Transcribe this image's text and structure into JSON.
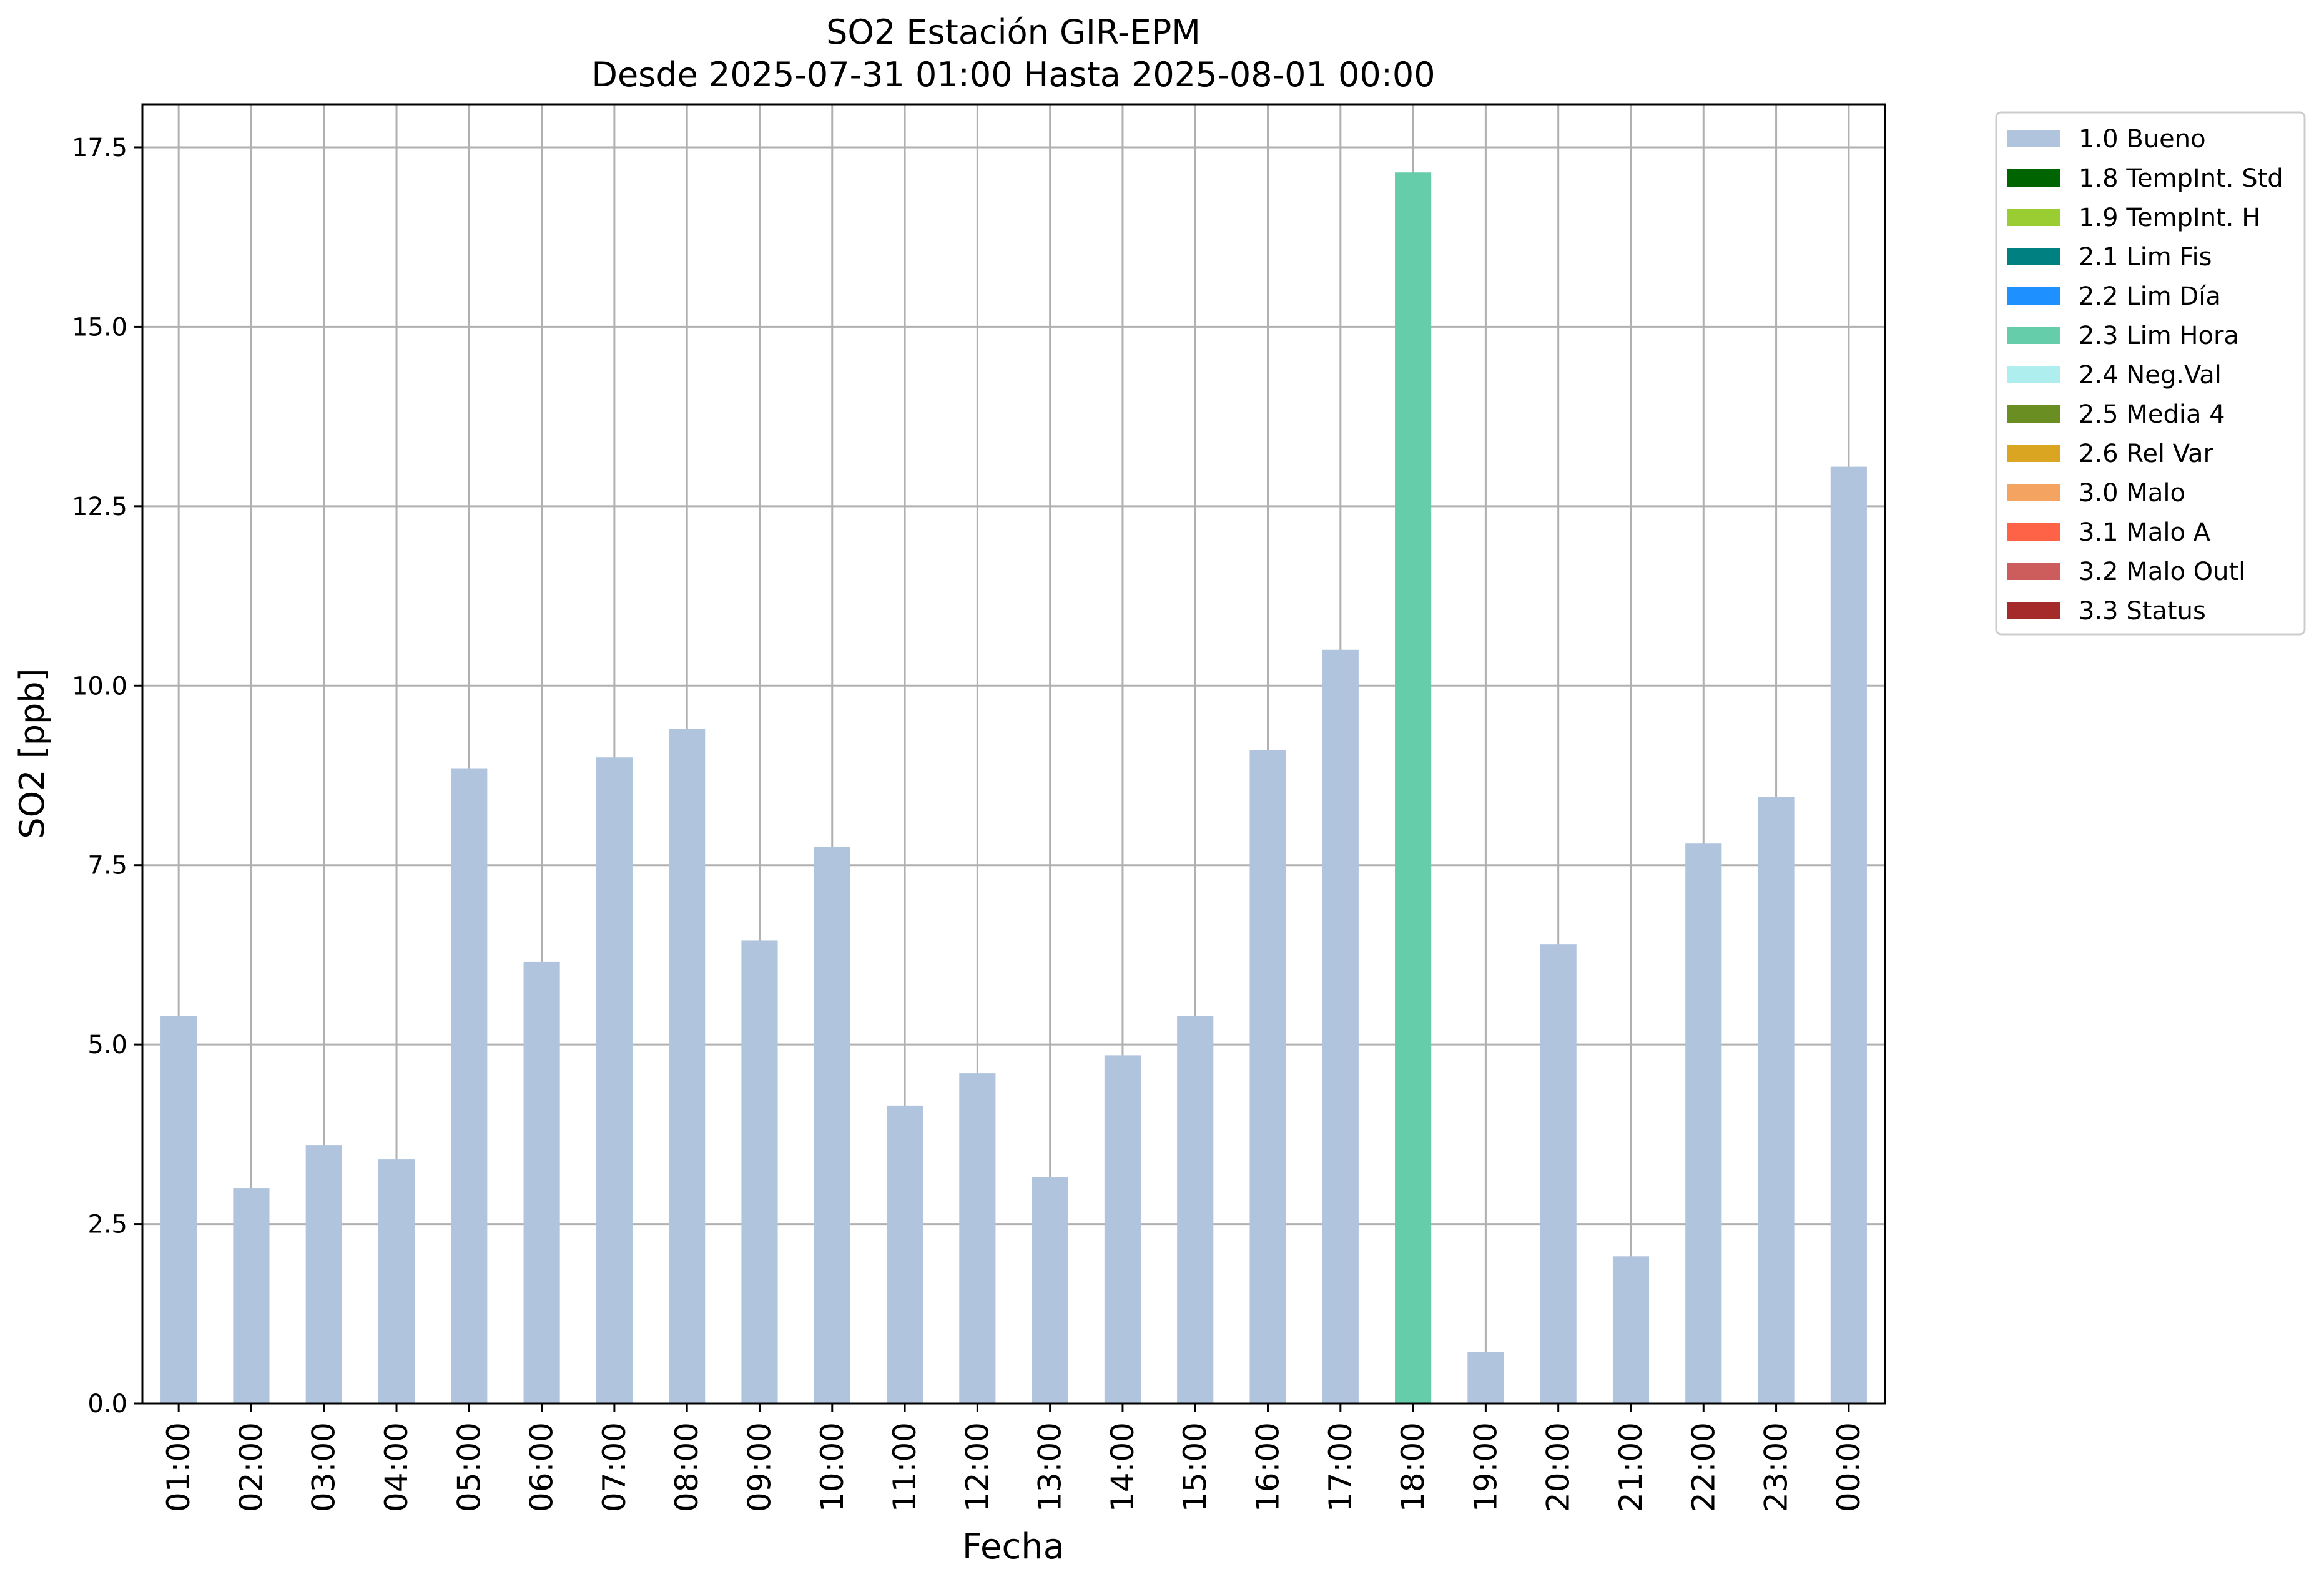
{
  "chart_data": {
    "type": "bar",
    "title": "SO2 Estación GIR-EPM",
    "subtitle": "Desde 2025-07-31 01:00 Hasta 2025-08-01 00:00",
    "xlabel": "Fecha",
    "ylabel": "SO2 [ppb]",
    "ylim": [
      0,
      18.1
    ],
    "yticks": [
      "0.0",
      "2.5",
      "5.0",
      "7.5",
      "10.0",
      "12.5",
      "15.0",
      "17.5"
    ],
    "grid": true,
    "legend_position": "outside-top-right",
    "categories": [
      "01:00",
      "02:00",
      "03:00",
      "04:00",
      "05:00",
      "06:00",
      "07:00",
      "08:00",
      "09:00",
      "10:00",
      "11:00",
      "12:00",
      "13:00",
      "14:00",
      "15:00",
      "16:00",
      "17:00",
      "18:00",
      "19:00",
      "20:00",
      "21:00",
      "22:00",
      "23:00",
      "00:00"
    ],
    "values": [
      5.4,
      3.0,
      3.6,
      3.4,
      8.85,
      6.15,
      9.0,
      9.4,
      6.45,
      7.75,
      4.15,
      4.6,
      3.15,
      4.85,
      5.4,
      9.1,
      10.5,
      17.15,
      0.72,
      6.4,
      2.05,
      7.8,
      8.45,
      13.05
    ],
    "flags": [
      "1.0 Bueno",
      "1.0 Bueno",
      "1.0 Bueno",
      "1.0 Bueno",
      "1.0 Bueno",
      "1.0 Bueno",
      "1.0 Bueno",
      "1.0 Bueno",
      "1.0 Bueno",
      "1.0 Bueno",
      "1.0 Bueno",
      "1.0 Bueno",
      "1.0 Bueno",
      "1.0 Bueno",
      "1.0 Bueno",
      "1.0 Bueno",
      "1.0 Bueno",
      "2.3 Lim Hora",
      "1.0 Bueno",
      "1.0 Bueno",
      "1.0 Bueno",
      "1.0 Bueno",
      "1.0 Bueno",
      "1.0 Bueno"
    ],
    "legend": [
      {
        "label": "1.0 Bueno",
        "color": "#b0c4de"
      },
      {
        "label": "1.8 TempInt. Std",
        "color": "#006400"
      },
      {
        "label": "1.9 TempInt. H",
        "color": "#9acd32"
      },
      {
        "label": "2.1 Lim Fis",
        "color": "#008080"
      },
      {
        "label": "2.2 Lim Día",
        "color": "#1e90ff"
      },
      {
        "label": "2.3 Lim Hora",
        "color": "#66cdaa"
      },
      {
        "label": "2.4 Neg.Val",
        "color": "#afeeee"
      },
      {
        "label": "2.5 Media 4",
        "color": "#6b8e23"
      },
      {
        "label": "2.6 Rel Var",
        "color": "#daa520"
      },
      {
        "label": "3.0 Malo",
        "color": "#f4a460"
      },
      {
        "label": "3.1 Malo A",
        "color": "#ff6347"
      },
      {
        "label": "3.2 Malo Outl",
        "color": "#cd5c5c"
      },
      {
        "label": "3.3 Status",
        "color": "#a52a2a"
      }
    ]
  }
}
